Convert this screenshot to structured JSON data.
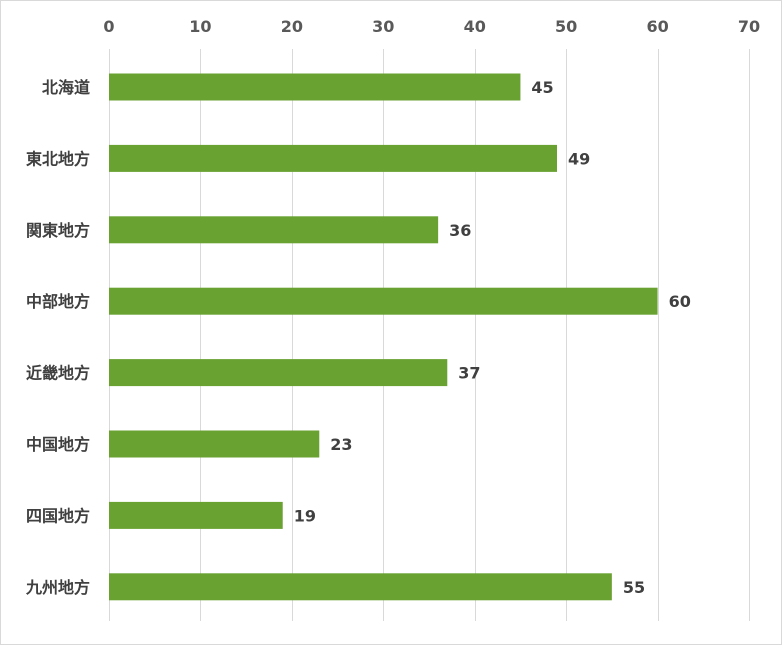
{
  "chart_data": {
    "type": "bar",
    "orientation": "horizontal",
    "categories": [
      "北海道",
      "東北地方",
      "関東地方",
      "中部地方",
      "近畿地方",
      "中国地方",
      "四国地方",
      "九州地方"
    ],
    "values": [
      45,
      49,
      36,
      60,
      37,
      23,
      19,
      55
    ],
    "xlim": [
      0,
      70
    ],
    "xticks": [
      "0",
      "10",
      "20",
      "30",
      "40",
      "50",
      "60",
      "70"
    ],
    "x_axis_position": "top",
    "grid": true,
    "legend": false,
    "bar_color": "#6aa232",
    "data_labels": true
  }
}
